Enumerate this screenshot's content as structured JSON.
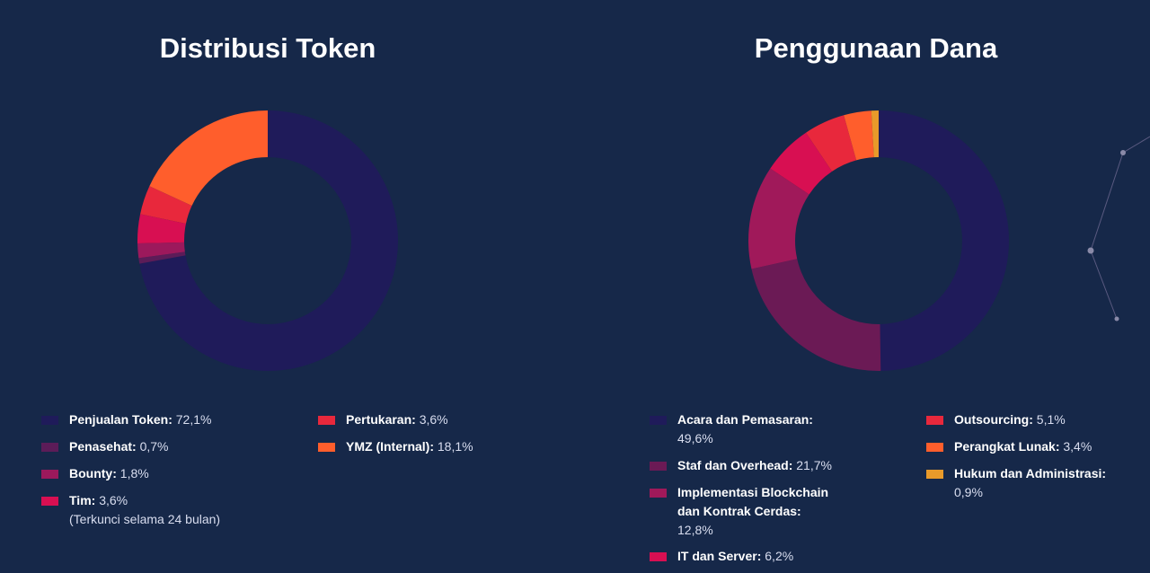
{
  "chart_data": [
    {
      "type": "pie",
      "title": "Distribusi Token",
      "legend_position": "bottom",
      "categories": [
        "Penjualan Token",
        "Penasehat",
        "Bounty",
        "Tim",
        "Pertukaran",
        "YMZ (Internal)"
      ],
      "values": [
        72.1,
        0.7,
        1.8,
        3.6,
        3.6,
        18.1
      ],
      "value_labels": [
        "72,1%",
        "0,7%",
        "1,8%",
        "3,6%",
        "3,6%",
        "18,1%"
      ],
      "notes": [
        "",
        "",
        "",
        "(Terkunci selama 24 bulan)",
        "",
        ""
      ],
      "colors": [
        "#1f1b5a",
        "#5c1c58",
        "#9c195c",
        "#d80f52",
        "#e8283c",
        "#ff5e2c"
      ]
    },
    {
      "type": "pie",
      "title": "Penggunaan Dana",
      "legend_position": "bottom",
      "categories": [
        "Acara dan Pemasaran",
        "Staf dan Overhead",
        "Implementasi Blockchain dan Kontrak Cerdas",
        "IT dan Server",
        "Outsourcing",
        "Perangkat Lunak",
        "Hukum dan Administrasi"
      ],
      "values": [
        49.6,
        21.7,
        12.8,
        6.2,
        5.1,
        3.4,
        0.9
      ],
      "value_labels": [
        "49,6%",
        "21,7%",
        "12,8%",
        "6,2%",
        "5,1%",
        "3,4%",
        "0,9%"
      ],
      "notes": [
        "",
        "",
        "",
        "",
        "",
        "",
        ""
      ],
      "colors": [
        "#1f1b5a",
        "#6b1a55",
        "#a0195a",
        "#d80f52",
        "#e8283c",
        "#ff5e2c",
        "#e89a2a"
      ]
    }
  ]
}
